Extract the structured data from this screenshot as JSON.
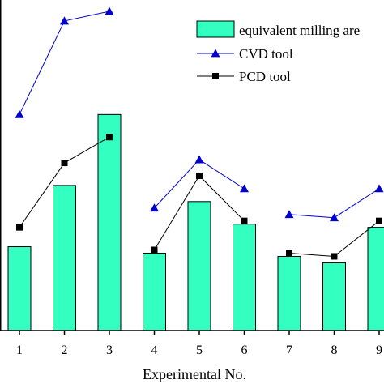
{
  "chart_data": {
    "type": "bar",
    "categories": [
      "1",
      "2",
      "3",
      "4",
      "5",
      "6",
      "7",
      "8",
      "9"
    ],
    "xlabel": "Experimental No.",
    "ylabel": "",
    "ylim": [
      0,
      100
    ],
    "grid": false,
    "legend_placement": "top-right",
    "series": [
      {
        "name": "equivalent milling are",
        "kind": "bar",
        "color": "#33FFC0",
        "values": [
          26,
          45,
          67,
          24,
          40,
          33,
          23,
          21,
          32
        ]
      },
      {
        "name": "CVD tool",
        "kind": "line",
        "marker": "triangle",
        "color": "#0000CC",
        "values": [
          67,
          96,
          99,
          38,
          53,
          44,
          36,
          35,
          44
        ]
      },
      {
        "name": "PCD tool",
        "kind": "line",
        "marker": "square",
        "color": "#000000",
        "values": [
          32,
          52,
          60,
          25,
          48,
          34,
          24,
          23,
          34
        ]
      }
    ]
  }
}
